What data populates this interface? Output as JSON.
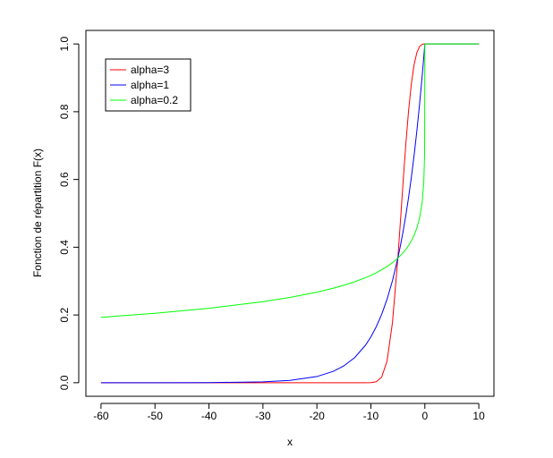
{
  "chart_data": {
    "type": "line",
    "xlabel": "x",
    "ylabel": "Fonction de répartition F(x)",
    "x": [
      -60,
      -50,
      -40,
      -30,
      -25,
      -20,
      -17,
      -15,
      -13,
      -11,
      -10,
      -9,
      -8,
      -7,
      -6,
      -5,
      -4.5,
      -4,
      -3.5,
      -3,
      -2.5,
      -2,
      -1.5,
      -1,
      -0.5,
      -0.2,
      -0.05,
      0,
      10
    ],
    "series": [
      {
        "name": "alpha=3",
        "color": "#ff0000",
        "values": [
          0,
          0,
          0,
          0,
          0,
          0,
          0,
          0,
          0,
          0,
          0.000335,
          0.00293,
          0.0166,
          0.0643,
          0.1776,
          0.3679,
          0.4824,
          0.5993,
          0.7096,
          0.8057,
          0.8825,
          0.938,
          0.9734,
          0.992,
          0.999,
          1,
          1,
          1,
          1
        ]
      },
      {
        "name": "alpha=1",
        "color": "#0000ff",
        "values": [
          6e-06,
          4.54e-05,
          0.000335,
          0.00248,
          0.00674,
          0.0183,
          0.0334,
          0.0498,
          0.0743,
          0.1108,
          0.1353,
          0.1653,
          0.2019,
          0.2466,
          0.3012,
          0.3679,
          0.4066,
          0.4493,
          0.4966,
          0.5488,
          0.6065,
          0.6703,
          0.7408,
          0.8187,
          0.9048,
          0.9608,
          0.99,
          1,
          1
        ]
      },
      {
        "name": "alpha=0.2",
        "color": "#00ff00",
        "values": [
          0.1932,
          0.2049,
          0.2197,
          0.2391,
          0.2517,
          0.2673,
          0.2788,
          0.2877,
          0.298,
          0.3101,
          0.317,
          0.3247,
          0.3334,
          0.3431,
          0.3545,
          0.3679,
          0.3757,
          0.3843,
          0.3941,
          0.4054,
          0.4187,
          0.435,
          0.4557,
          0.4844,
          0.5321,
          0.5914,
          0.6716,
          1,
          1
        ]
      }
    ],
    "xlim": [
      -62.8,
      12.8
    ],
    "xticks": [
      -60,
      -50,
      -40,
      -30,
      -20,
      -10,
      0,
      10
    ],
    "ylim": [
      -0.04,
      1.04
    ],
    "yticks": [
      {
        "value": 0,
        "label": "0.0"
      },
      {
        "value": 0.2,
        "label": "0.2"
      },
      {
        "value": 0.4,
        "label": "0.4"
      },
      {
        "value": 0.6,
        "label": "0.6"
      },
      {
        "value": 0.8,
        "label": "0.8"
      },
      {
        "value": 1,
        "label": "1.0"
      }
    ],
    "legend": "top-left"
  }
}
